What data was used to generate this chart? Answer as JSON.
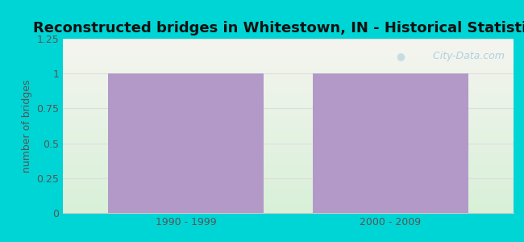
{
  "title": "Reconstructed bridges in Whitestown, IN - Historical Statistics",
  "categories": [
    "1990 - 1999",
    "2000 - 2009"
  ],
  "values": [
    1,
    1
  ],
  "bar_color": "#b399c8",
  "ylim": [
    0,
    1.25
  ],
  "yticks": [
    0,
    0.25,
    0.5,
    0.75,
    1,
    1.25
  ],
  "ytick_labels": [
    "0",
    "0.25",
    "0.5",
    "0.75",
    "1",
    "1.25"
  ],
  "ylabel": "number of bridges",
  "background_outer": "#00d5d5",
  "background_inner_top": "#f5f5f0",
  "background_inner_bottom": "#d8f0d8",
  "title_fontsize": 13,
  "label_fontsize": 9,
  "tick_fontsize": 9,
  "title_color": "#111111",
  "tick_color": "#555555",
  "ylabel_color": "#555555",
  "watermark": "  City-Data.com",
  "watermark_color": "#aaccdd",
  "grid_color": "#dddddd",
  "bar_width": 0.38,
  "x_positions": [
    0.25,
    0.75
  ]
}
